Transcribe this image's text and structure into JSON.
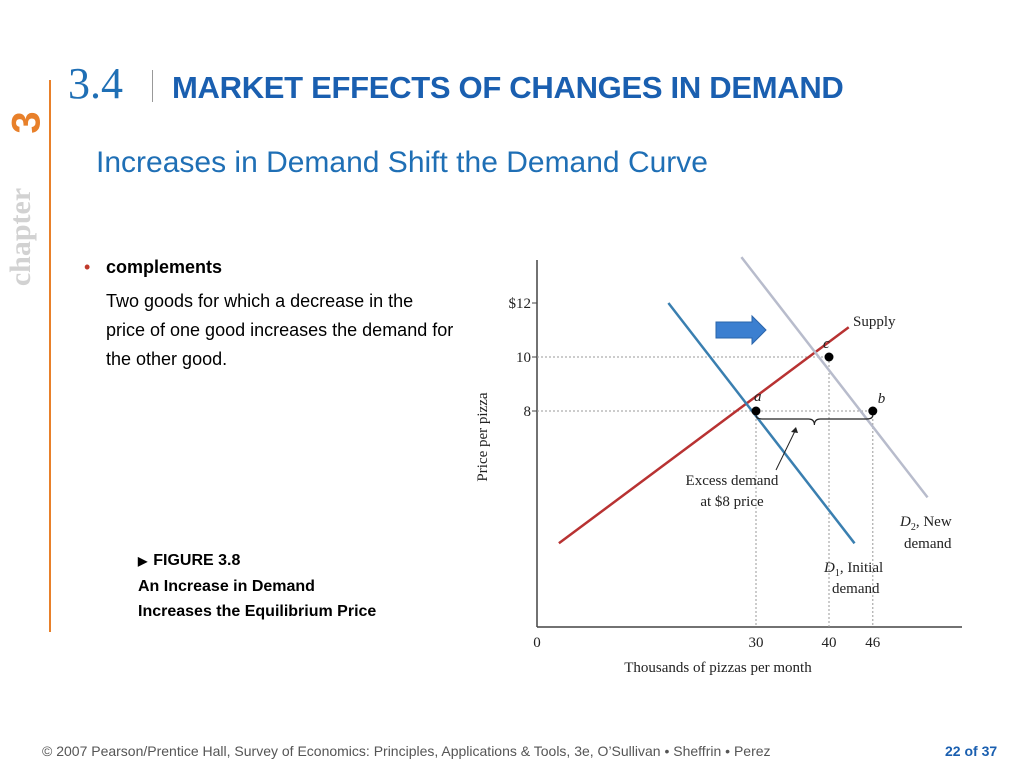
{
  "side_tab": {
    "label": "chapter",
    "number": "3"
  },
  "section": {
    "number": "3.4"
  },
  "title": "MARKET EFFECTS OF CHANGES IN DEMAND",
  "subtitle": "Increases in Demand Shift the Demand Curve",
  "bullet": {
    "term": "complements",
    "definition": "Two goods for which a decrease in the price of one good increases the demand for the other good."
  },
  "figure": {
    "label": "FIGURE 3.8",
    "caption_line1": "An Increase in Demand",
    "caption_line2": "Increases the Equilibrium Price"
  },
  "footer": {
    "credit": "© 2007 Pearson/Prentice Hall, Survey of Economics: Principles, Applications & Tools, 3e, O’Sullivan • Sheffrin • Perez",
    "page": "22 of 37"
  },
  "colors": {
    "title": "#1a5fb0",
    "accent_orange": "#e8802a",
    "supply": "#b83232",
    "demand_initial": "#3a7fb0",
    "demand_new": "#b8bccc",
    "shift_arrow": "#3b7fd0"
  },
  "chart_data": {
    "type": "line",
    "xlabel": "Thousands of pizzas per month",
    "ylabel": "Price per pizza",
    "xlim": [
      0,
      58
    ],
    "ylim": [
      0,
      13.7
    ],
    "x_ticks": [
      {
        "v": 0,
        "label": "0"
      },
      {
        "v": 30,
        "label": "30"
      },
      {
        "v": 40,
        "label": "40"
      },
      {
        "v": 46,
        "label": "46"
      }
    ],
    "y_ticks": [
      {
        "v": 12,
        "label": "$12"
      },
      {
        "v": 10,
        "label": "10"
      },
      {
        "v": 8,
        "label": "8"
      }
    ],
    "series": [
      {
        "key": "supply",
        "name": "Supply",
        "x": [
          3,
          42.7
        ],
        "y": [
          3.1,
          11.1
        ]
      },
      {
        "key": "d1",
        "name": "D1, Initial demand",
        "x": [
          18,
          43.5
        ],
        "y": [
          12,
          3.1
        ]
      },
      {
        "key": "d2",
        "name": "D2, New demand",
        "x": [
          28,
          53.5
        ],
        "y": [
          13.7,
          4.8
        ]
      }
    ],
    "points": [
      {
        "label": "a",
        "x": 30,
        "y": 8
      },
      {
        "label": "b",
        "x": 46,
        "y": 8
      },
      {
        "label": "c",
        "x": 40,
        "y": 10
      }
    ],
    "labels": {
      "supply": "Supply",
      "d1_sub": "1",
      "d1_text": "Initial",
      "d1_text2": "demand",
      "d2_sub": "2",
      "d2_text": "New",
      "d2_text2": "demand",
      "excess1": "Excess demand",
      "excess2": "at $8 price"
    }
  }
}
